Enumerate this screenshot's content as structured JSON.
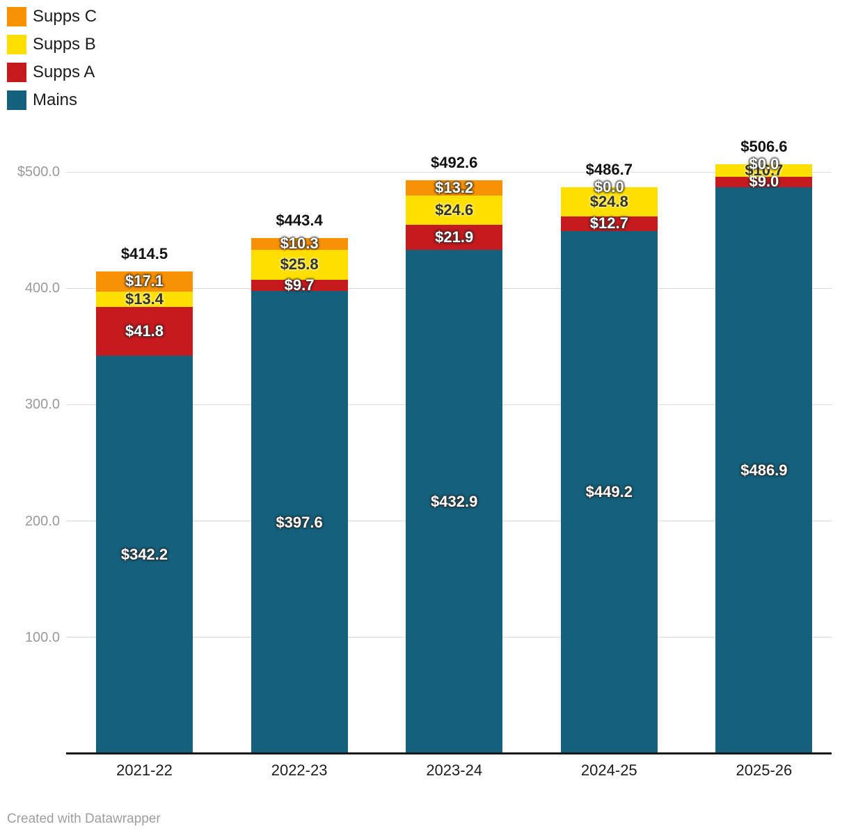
{
  "legend": {
    "position": "top-left",
    "items": [
      {
        "label": "Supps C",
        "color": "#f79105"
      },
      {
        "label": "Supps B",
        "color": "#ffdf00"
      },
      {
        "label": "Supps A",
        "color": "#c51a1e"
      },
      {
        "label": "Mains",
        "color": "#15617d"
      }
    ]
  },
  "chart_data": {
    "type": "bar",
    "stacked": true,
    "title": "",
    "categories": [
      "2021-22",
      "2022-23",
      "2023-24",
      "2024-25",
      "2025-26"
    ],
    "series": [
      {
        "name": "Mains",
        "color": "#15617d",
        "values": [
          342.2,
          397.6,
          432.9,
          449.2,
          486.9
        ]
      },
      {
        "name": "Supps A",
        "color": "#c51a1e",
        "values": [
          41.8,
          9.7,
          21.9,
          12.7,
          9.0
        ]
      },
      {
        "name": "Supps B",
        "color": "#ffdf00",
        "values": [
          13.4,
          25.8,
          24.6,
          24.8,
          10.7
        ]
      },
      {
        "name": "Supps C",
        "color": "#f79105",
        "values": [
          17.1,
          10.3,
          13.2,
          0.0,
          0.0
        ]
      }
    ],
    "totals": [
      414.5,
      443.4,
      492.6,
      486.7,
      506.6
    ],
    "value_prefix": "$",
    "y_ticks": [
      {
        "value": 500,
        "label": "$500.0"
      },
      {
        "value": 400,
        "label": "400.0"
      },
      {
        "value": 300,
        "label": "300.0"
      },
      {
        "value": 200,
        "label": "200.0"
      },
      {
        "value": 100,
        "label": "100.0"
      }
    ],
    "ylim": [
      0,
      540
    ],
    "grid": true,
    "legend_position": "top-left"
  },
  "footer": {
    "credit": "Created with Datawrapper"
  }
}
